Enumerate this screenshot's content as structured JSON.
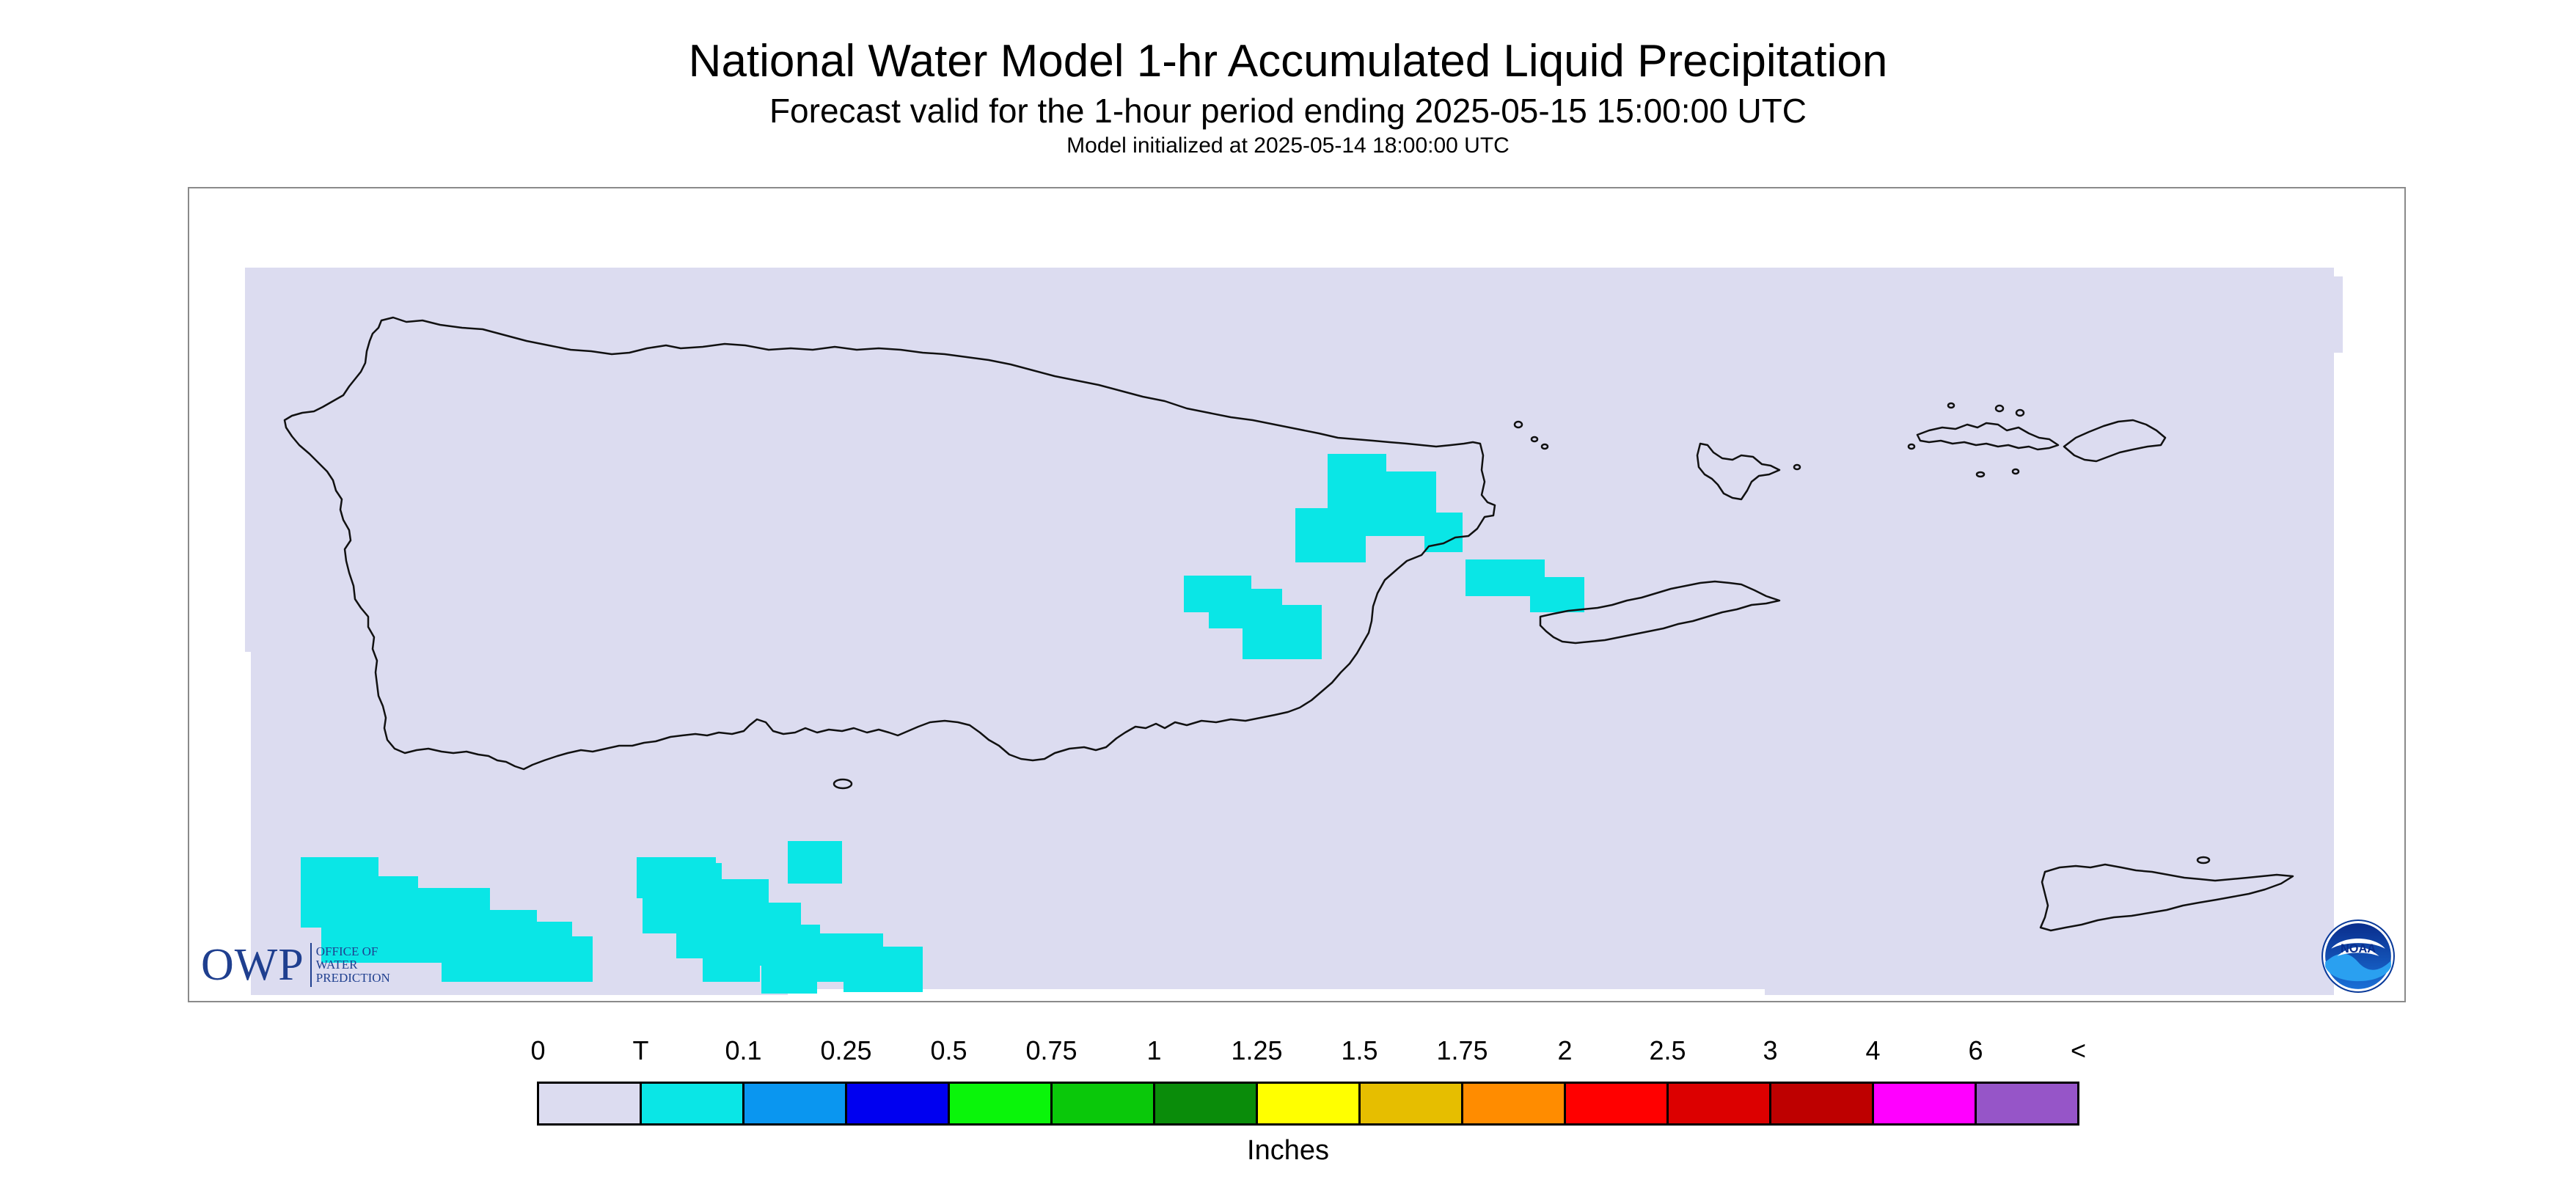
{
  "header": {
    "title": "National Water Model 1-hr Accumulated Liquid Precipitation",
    "subtitle": "Forecast valid for the 1-hour period ending 2025-05-15 15:00:00 UTC",
    "init": "Model initialized at 2025-05-14 18:00:00 UTC"
  },
  "map": {
    "background_color": "#dcdcf0",
    "coast_color": "#111111",
    "precip_color": "#0ae6e6",
    "regions": [
      "Puerto Rico",
      "Vieques",
      "Culebra",
      "St. Thomas",
      "St. John",
      "St. Croix"
    ]
  },
  "logos": {
    "owp_letters": "OWP",
    "owp_words": [
      "OFFICE OF",
      "WATER",
      "PREDICTION"
    ],
    "noaa": "NOAA"
  },
  "legend": {
    "labels": [
      "0",
      "T",
      "0.1",
      "0.25",
      "0.5",
      "0.75",
      "1",
      "1.25",
      "1.5",
      "1.75",
      "2",
      "2.5",
      "3",
      "4",
      "6",
      "<"
    ],
    "colors": [
      "#dcdcf0",
      "#0ae6e6",
      "#0a96f0",
      "#0000f0",
      "#0af50a",
      "#0ac80a",
      "#0a8c0a",
      "#ffff00",
      "#e6be00",
      "#ff8c00",
      "#ff0000",
      "#dc0000",
      "#be0000",
      "#ff00ff",
      "#9655c8"
    ],
    "units": "Inches"
  }
}
